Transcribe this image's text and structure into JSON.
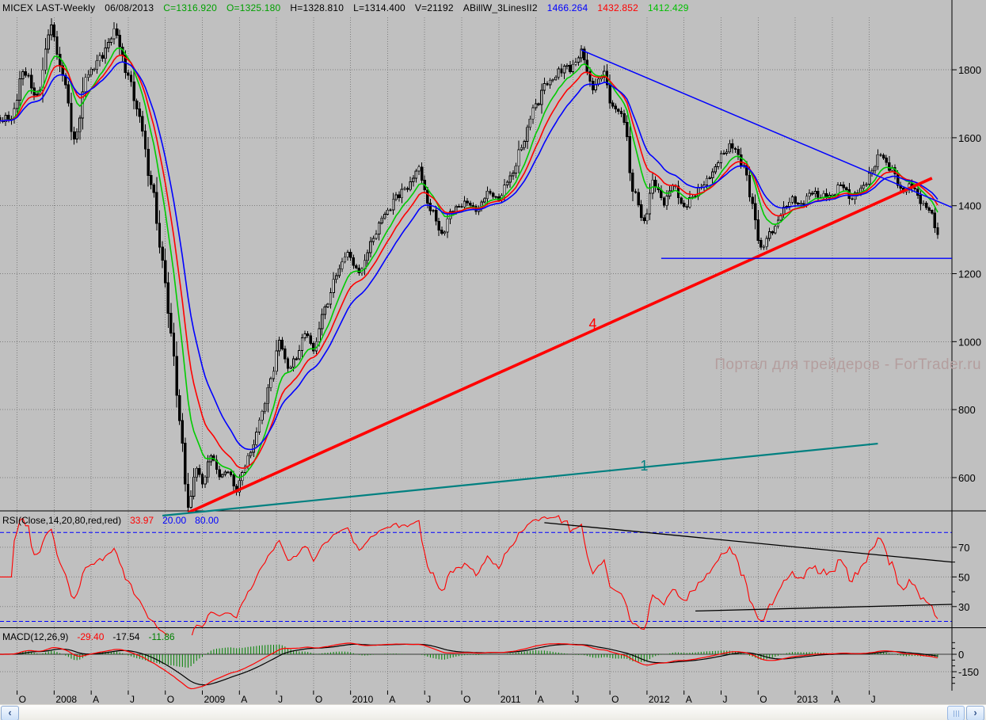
{
  "header": {
    "segments": [
      {
        "text": "MICEX LAST-Weekly",
        "color": "#000000"
      },
      {
        "text": "06/08/2013",
        "color": "#000000"
      },
      {
        "text": "C=1316.920",
        "color": "#00a000"
      },
      {
        "text": "O=1325.180",
        "color": "#00a000"
      },
      {
        "text": "H=1328.810",
        "color": "#000000"
      },
      {
        "text": "L=1314.400",
        "color": "#000000"
      },
      {
        "text": "V=21192",
        "color": "#000000"
      },
      {
        "text": "ABillW_3LinesII2",
        "color": "#000000"
      },
      {
        "text": "1466.264",
        "color": "#0000ff"
      },
      {
        "text": "1432.852",
        "color": "#ff0000"
      },
      {
        "text": "1412.429",
        "color": "#00c000"
      }
    ]
  },
  "watermark": "Портал для трейдеров - ForTrader.ru",
  "indicators": {
    "rsi": {
      "label": "RSI(Close,14,20,80,red,red)",
      "values": [
        {
          "text": "33.97",
          "color": "#ff0000"
        },
        {
          "text": "20.00",
          "color": "#0000ff"
        },
        {
          "text": "80.00",
          "color": "#0000ff"
        }
      ]
    },
    "macd": {
      "label": "MACD(12,26,9)",
      "values": [
        {
          "text": "-29.40",
          "color": "#ff0000"
        },
        {
          "text": "-17.54",
          "color": "#000000"
        },
        {
          "text": "-11.86",
          "color": "#008000"
        }
      ]
    }
  },
  "scrollbar": {
    "left_arrow": "‹",
    "right_arrow": "›"
  },
  "chart_data": {
    "type": "candlestick",
    "symbol": "MICEX",
    "timeframe": "Weekly",
    "last_date": "06/08/2013",
    "ohlc_last": {
      "close": 1316.92,
      "open": 1325.18,
      "high": 1328.81,
      "low": 1314.4,
      "volume": 21192
    },
    "x_axis": {
      "xlim_weeks": [
        -4,
        330
      ],
      "ticks": [
        [
          "O",
          2
        ],
        [
          "2008",
          15
        ],
        [
          "A",
          28
        ],
        [
          "J",
          41
        ],
        [
          "O",
          54
        ],
        [
          "2009",
          67
        ],
        [
          "A",
          80
        ],
        [
          "J",
          93
        ],
        [
          "O",
          106
        ],
        [
          "2010",
          119
        ],
        [
          "A",
          132
        ],
        [
          "J",
          145
        ],
        [
          "O",
          158
        ],
        [
          "2011",
          171
        ],
        [
          "A",
          184
        ],
        [
          "J",
          197
        ],
        [
          "O",
          210
        ],
        [
          "2012",
          223
        ],
        [
          "A",
          236
        ],
        [
          "J",
          249
        ],
        [
          "O",
          262
        ],
        [
          "2013",
          275
        ],
        [
          "A",
          288
        ],
        [
          "J",
          301
        ]
      ]
    },
    "price_panel": {
      "ylim": [
        502,
        1954
      ],
      "axis_ticks": [
        1800,
        1600,
        1400,
        1200,
        1000,
        800,
        600
      ],
      "grid": true
    },
    "close_anchors": [
      [
        0,
        1655
      ],
      [
        4,
        1795
      ],
      [
        9,
        1725
      ],
      [
        14,
        1923
      ],
      [
        18,
        1784
      ],
      [
        22,
        1597
      ],
      [
        27,
        1795
      ],
      [
        31,
        1830
      ],
      [
        36,
        1912
      ],
      [
        41,
        1784
      ],
      [
        45,
        1655
      ],
      [
        49,
        1469
      ],
      [
        53,
        1236
      ],
      [
        56,
        1026
      ],
      [
        59,
        770
      ],
      [
        62,
        515
      ],
      [
        65,
        630
      ],
      [
        67,
        584
      ],
      [
        70,
        665
      ],
      [
        73,
        607
      ],
      [
        76,
        619
      ],
      [
        79,
        560
      ],
      [
        81,
        619
      ],
      [
        84,
        677
      ],
      [
        88,
        793
      ],
      [
        91,
        887
      ],
      [
        94,
        1003
      ],
      [
        97,
        921
      ],
      [
        100,
        956
      ],
      [
        103,
        1026
      ],
      [
        106,
        980
      ],
      [
        110,
        1096
      ],
      [
        114,
        1201
      ],
      [
        118,
        1259
      ],
      [
        122,
        1201
      ],
      [
        127,
        1306
      ],
      [
        131,
        1376
      ],
      [
        135,
        1423
      ],
      [
        139,
        1458
      ],
      [
        143,
        1504
      ],
      [
        147,
        1388
      ],
      [
        151,
        1318
      ],
      [
        154,
        1376
      ],
      [
        159,
        1411
      ],
      [
        163,
        1388
      ],
      [
        167,
        1434
      ],
      [
        171,
        1423
      ],
      [
        175,
        1481
      ],
      [
        179,
        1574
      ],
      [
        184,
        1702
      ],
      [
        188,
        1760
      ],
      [
        192,
        1795
      ],
      [
        196,
        1807
      ],
      [
        200,
        1847
      ],
      [
        204,
        1749
      ],
      [
        208,
        1784
      ],
      [
        211,
        1690
      ],
      [
        215,
        1655
      ],
      [
        218,
        1446
      ],
      [
        222,
        1353
      ],
      [
        225,
        1469
      ],
      [
        229,
        1411
      ],
      [
        232,
        1458
      ],
      [
        236,
        1399
      ],
      [
        239,
        1423
      ],
      [
        243,
        1469
      ],
      [
        246,
        1492
      ],
      [
        249,
        1551
      ],
      [
        253,
        1574
      ],
      [
        257,
        1516
      ],
      [
        260,
        1399
      ],
      [
        263,
        1271
      ],
      [
        267,
        1329
      ],
      [
        271,
        1388
      ],
      [
        274,
        1423
      ],
      [
        277,
        1399
      ],
      [
        281,
        1446
      ],
      [
        284,
        1423
      ],
      [
        288,
        1434
      ],
      [
        291,
        1458
      ],
      [
        295,
        1423
      ],
      [
        298,
        1446
      ],
      [
        302,
        1504
      ],
      [
        305,
        1551
      ],
      [
        309,
        1504
      ],
      [
        312,
        1446
      ],
      [
        316,
        1458
      ],
      [
        319,
        1411
      ],
      [
        322,
        1388
      ],
      [
        325,
        1317
      ]
    ],
    "moving_averages": [
      {
        "name": "fast",
        "period": 9,
        "color": "#00cc00",
        "last": 1412.429
      },
      {
        "name": "mid",
        "period": 14,
        "color": "#ff0000",
        "last": 1432.852
      },
      {
        "name": "slow",
        "period": 21,
        "color": "#0000ff",
        "last": 1466.264
      }
    ],
    "rsi_panel": {
      "period": 14,
      "ylim": [
        16,
        94
      ],
      "axis_ticks": [
        70,
        50,
        30
      ],
      "dashed_levels": [
        80,
        20
      ],
      "last": 33.97,
      "trendlines": [
        {
          "name": "rsi-upper-trendline",
          "from": [
            187,
            86.6
          ],
          "to": [
            330,
            60
          ]
        },
        {
          "name": "rsi-lower-trendline",
          "from": [
            240,
            27
          ],
          "to": [
            330,
            31.5
          ]
        }
      ]
    },
    "macd_panel": {
      "fast": 12,
      "slow": 26,
      "signal": 9,
      "ylim": [
        -327,
        225
      ],
      "axis_ticks": [
        0,
        -150
      ],
      "last_macd": -29.4,
      "last_signal": -17.54,
      "last_hist": -11.86
    },
    "trendlines": [
      {
        "name": "trendline-4",
        "color": "#ff0000",
        "width": 3.6,
        "from_week": 62,
        "from_price": 497,
        "to_week": 323,
        "to_price": 1481,
        "label": "4",
        "label_week": 204,
        "label_price": 1038
      },
      {
        "name": "trendline-1",
        "color": "#008080",
        "width": 2.2,
        "from_week": 53,
        "from_price": 488,
        "to_week": 304,
        "to_price": 700,
        "label": "1",
        "label_week": 222,
        "label_price": 621
      },
      {
        "name": "resistance-trendline",
        "color": "#0000ff",
        "width": 1.5,
        "from_week": 200,
        "from_price": 1858,
        "to_week": 330,
        "to_price": 1395
      },
      {
        "name": "support-line",
        "color": "#0000ff",
        "width": 1.3,
        "from_week": 228,
        "from_price": 1245,
        "to_week": 330,
        "to_price": 1245
      }
    ]
  }
}
